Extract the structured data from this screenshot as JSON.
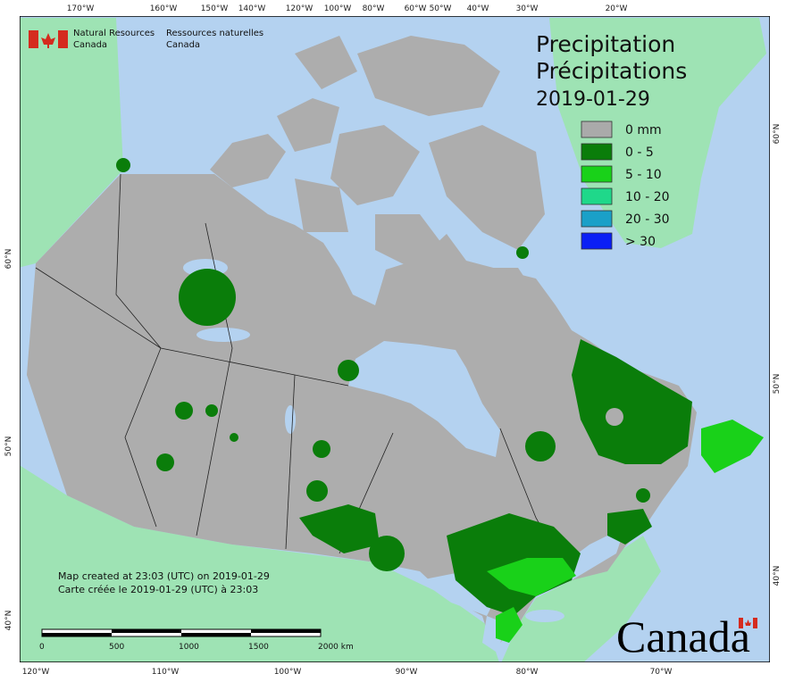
{
  "title": {
    "line1": "Precipitation",
    "line2": "Précipitations",
    "date": "2019-01-29"
  },
  "agency": {
    "en": [
      "Natural Resources",
      "Canada"
    ],
    "fr": [
      "Ressources naturelles",
      "Canada"
    ]
  },
  "legend": [
    {
      "label": "0 mm",
      "color": "#aaaaaa"
    },
    {
      "label": "0 - 5",
      "color": "#0a7d0a"
    },
    {
      "label": "5 - 10",
      "color": "#19d119"
    },
    {
      "label": "10 - 20",
      "color": "#1fd88a"
    },
    {
      "label": "20 - 30",
      "color": "#1aa0c8"
    },
    {
      "label": "> 30",
      "color": "#0a1ff5"
    }
  ],
  "graticule": {
    "top": [
      "170°W",
      "160°W",
      "150°W",
      "140°W",
      "120°W",
      "100°W",
      "80°W",
      "60°W",
      "50°W",
      "40°W",
      "30°W",
      "20°W"
    ],
    "bottom": [
      "120°W",
      "110°W",
      "100°W",
      "90°W",
      "80°W",
      "70°W"
    ],
    "left": [
      "60°N",
      "50°N",
      "40°N"
    ],
    "right": [
      "60°N",
      "50°N",
      "40°N"
    ]
  },
  "notes": [
    "Map created at 23:03 (UTC) on 2019-01-29",
    "Carte créée le 2019-01-29 (UTC) à 23:03"
  ],
  "scale_bar": [
    "0",
    "500",
    "1000",
    "1500",
    "2000 km"
  ],
  "wordmark": "Canada"
}
